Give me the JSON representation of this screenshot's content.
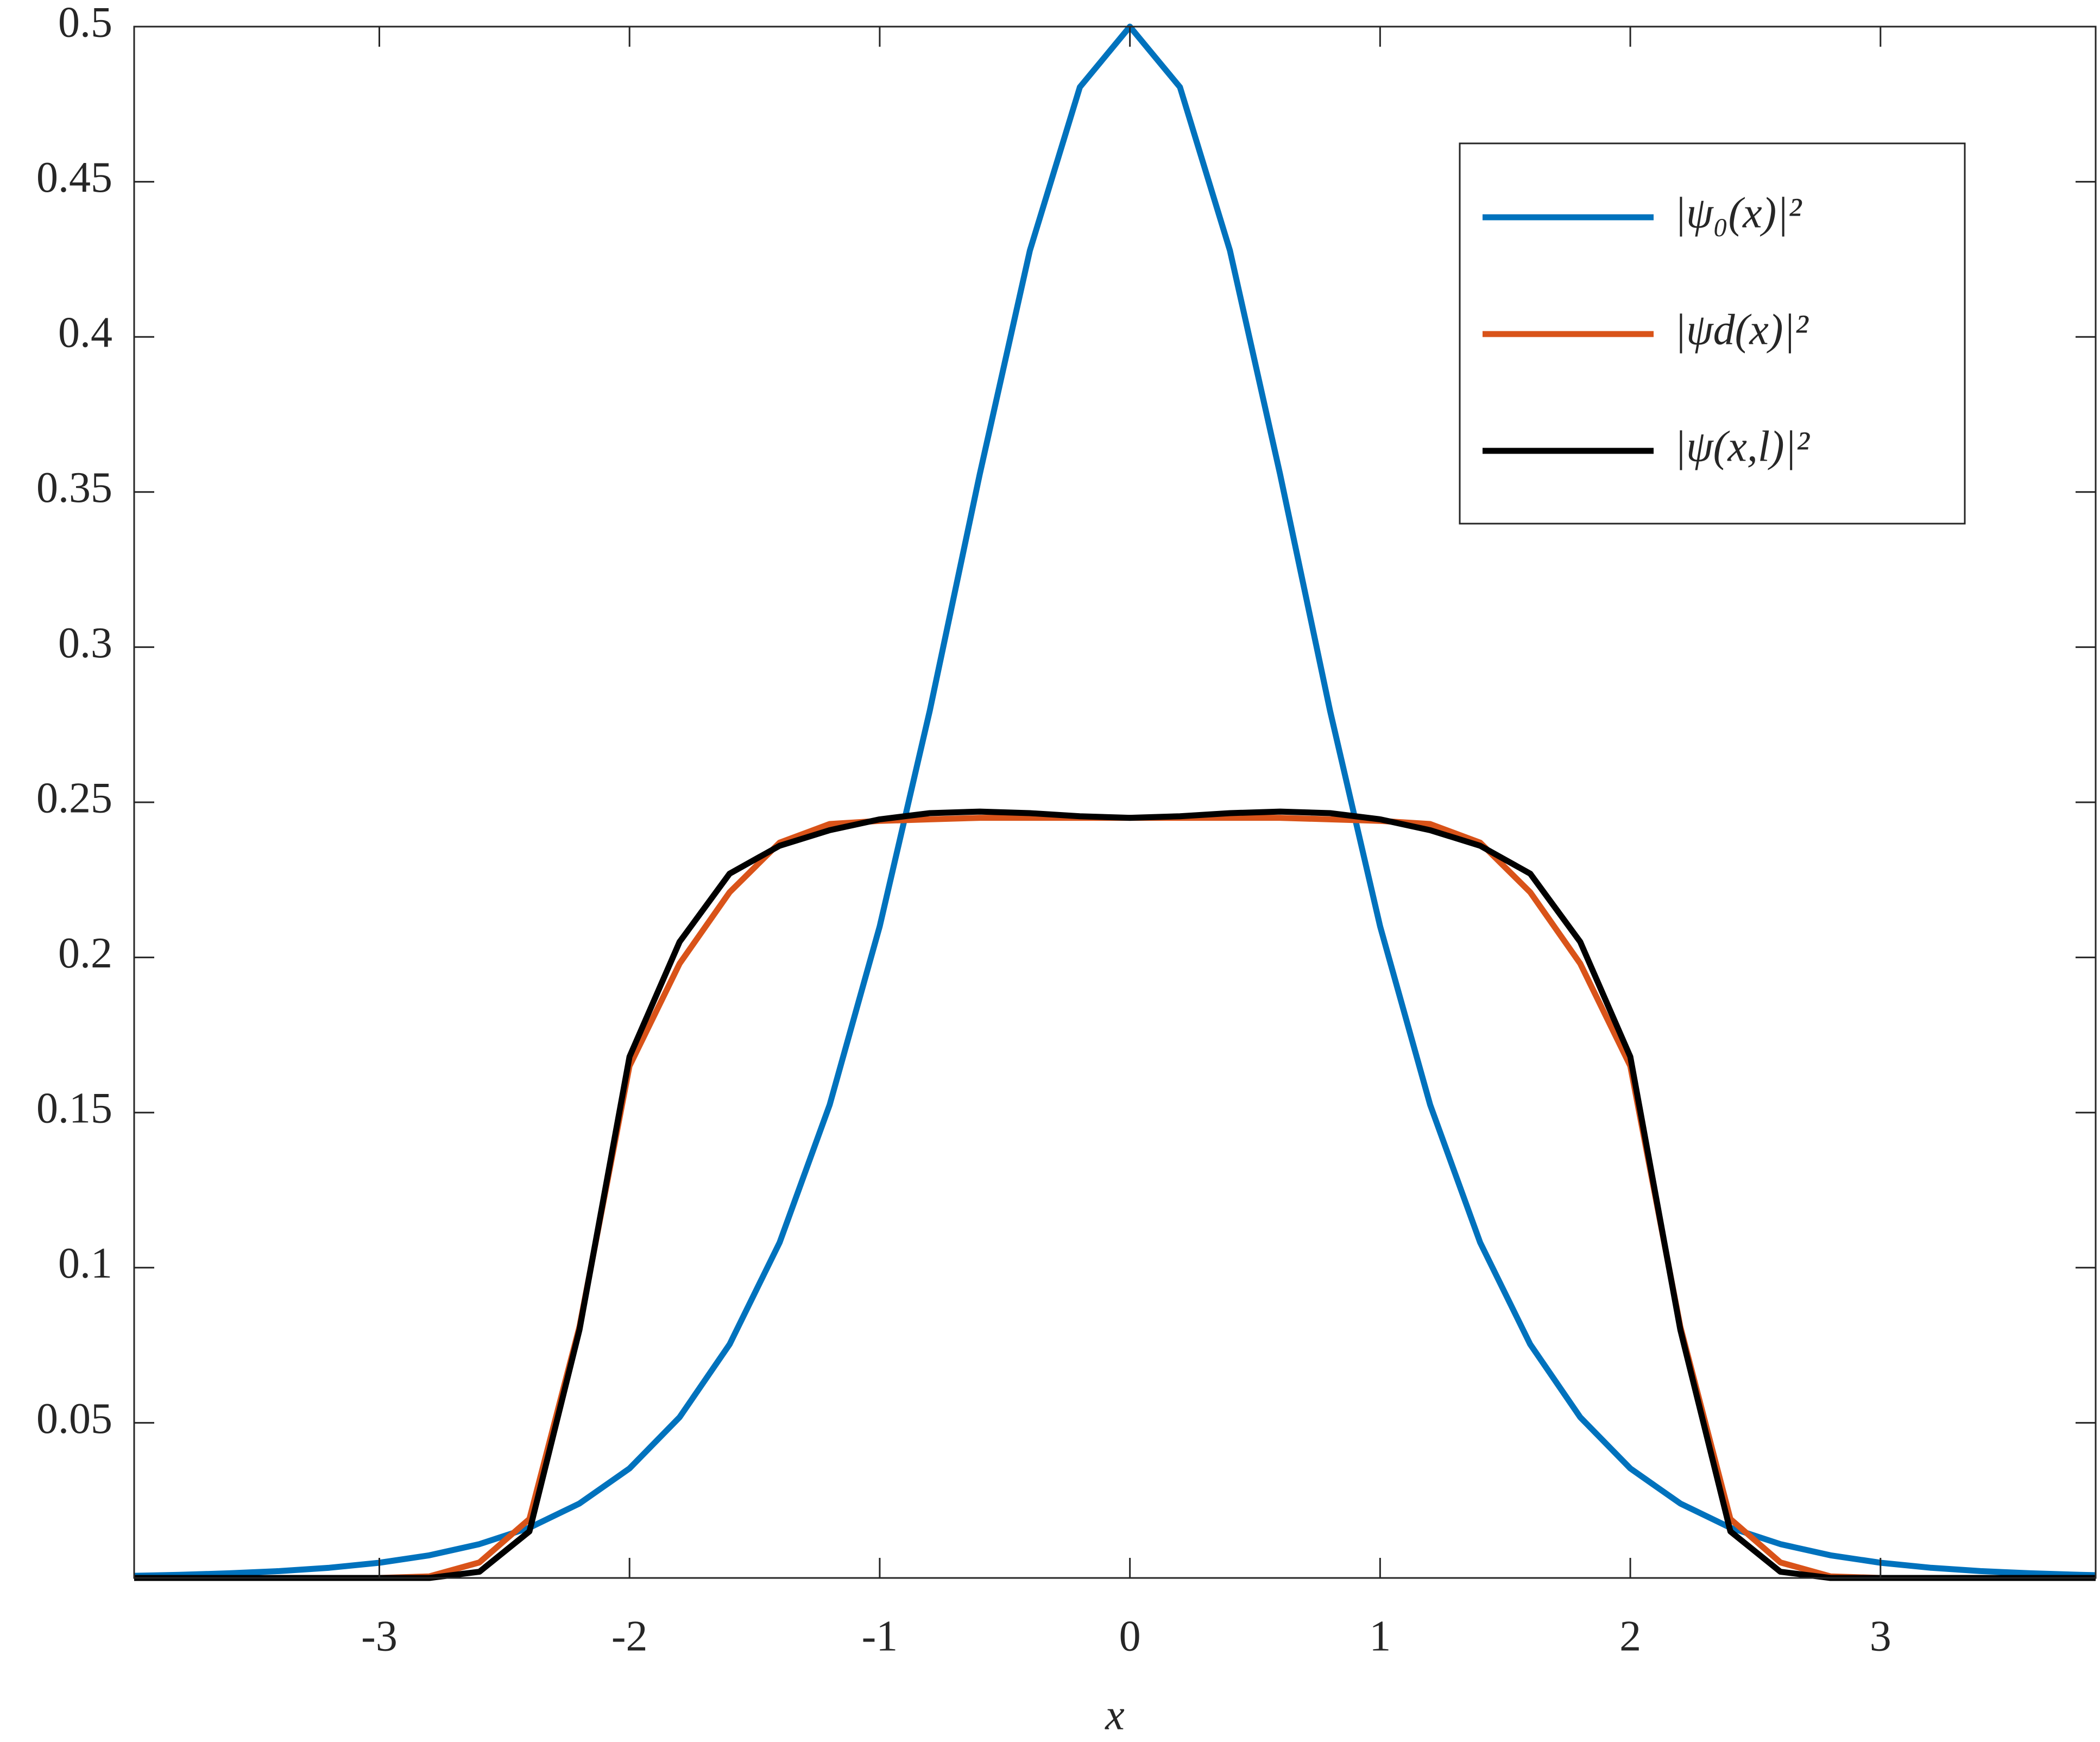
{
  "chart_data": {
    "type": "line",
    "xlabel": "x",
    "x": [
      -3.98,
      -3.8,
      -3.6,
      -3.4,
      -3.2,
      -3.0,
      -2.8,
      -2.6,
      -2.4,
      -2.2,
      -2.0,
      -1.8,
      -1.6,
      -1.4,
      -1.2,
      -1.0,
      -0.8,
      -0.6,
      -0.4,
      -0.2,
      0,
      0.2,
      0.4,
      0.6,
      0.8,
      1.0,
      1.2,
      1.4,
      1.6,
      1.8,
      2.0,
      2.2,
      2.4,
      2.6,
      2.8,
      3.0,
      3.2,
      3.4,
      3.6,
      3.8,
      3.86
    ],
    "series": [
      {
        "name": "|ψ₀(x)|²",
        "color": "#0072bd",
        "values": [
          0.0007,
          0.001,
          0.0015,
          0.0022,
          0.0033,
          0.0049,
          0.0073,
          0.0109,
          0.0162,
          0.024,
          0.0353,
          0.0518,
          0.0753,
          0.1081,
          0.1525,
          0.21,
          0.2795,
          0.3558,
          0.4278,
          0.4805,
          0.5,
          0.4805,
          0.4278,
          0.3558,
          0.2795,
          0.21,
          0.1525,
          0.1081,
          0.0753,
          0.0518,
          0.0353,
          0.024,
          0.0162,
          0.0109,
          0.0073,
          0.0049,
          0.0033,
          0.0022,
          0.0015,
          0.001,
          0.0009
        ]
      },
      {
        "name": "|ψd(x)|²",
        "color": "#d95319",
        "values": [
          0,
          0,
          0,
          0,
          0,
          0,
          0.0005,
          0.005,
          0.019,
          0.081,
          0.165,
          0.198,
          0.221,
          0.237,
          0.243,
          0.244,
          0.2445,
          0.245,
          0.245,
          0.245,
          0.245,
          0.245,
          0.245,
          0.245,
          0.2445,
          0.244,
          0.243,
          0.237,
          0.221,
          0.198,
          0.165,
          0.081,
          0.019,
          0.005,
          0.0005,
          0,
          0,
          0,
          0,
          0,
          0
        ]
      },
      {
        "name": "|ψ(x,l)|²",
        "color": "#000000",
        "values": [
          0,
          0,
          0,
          0,
          0,
          0,
          0,
          0.002,
          0.015,
          0.08,
          0.168,
          0.205,
          0.227,
          0.236,
          0.241,
          0.2445,
          0.2465,
          0.247,
          0.2465,
          0.2455,
          0.245,
          0.2455,
          0.2465,
          0.247,
          0.2465,
          0.2445,
          0.241,
          0.236,
          0.227,
          0.205,
          0.168,
          0.08,
          0.015,
          0.002,
          0,
          0,
          0,
          0,
          0,
          0,
          0
        ]
      }
    ],
    "xlim": [
      -3.98,
      3.86
    ],
    "xticks": [
      -3,
      -2,
      -1,
      0,
      1,
      2,
      3
    ],
    "ylim": [
      0,
      0.5
    ],
    "yticks": [
      0.05,
      0.1,
      0.15,
      0.2,
      0.25,
      0.3,
      0.35,
      0.4,
      0.45,
      0.5
    ],
    "grid": false,
    "legend": "northeast"
  }
}
